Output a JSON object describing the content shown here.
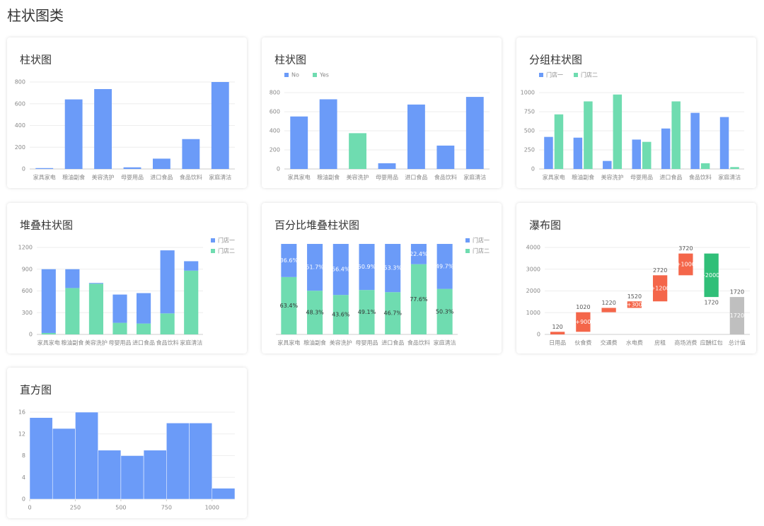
{
  "header": {
    "title": "柱状图类"
  },
  "chart_data": [
    {
      "type": "bar",
      "title": "柱状图",
      "categories": [
        "家具家电",
        "粮油副食",
        "美容洗护",
        "母婴用品",
        "进口食品",
        "食品饮料",
        "家庭清洁"
      ],
      "values": [
        8,
        640,
        735,
        15,
        95,
        275,
        800
      ],
      "color": "#6b9bf8",
      "ylim": [
        0,
        800
      ],
      "yticks": [
        0,
        200,
        400,
        600,
        800
      ],
      "grid": true
    },
    {
      "type": "bar",
      "title": "柱状图",
      "legend": "top-left",
      "categories": [
        "家具家电",
        "粮油副食",
        "美容洗护",
        "母婴用品",
        "进口食品",
        "食品饮料",
        "家庭清洁"
      ],
      "series": [
        {
          "name": "No",
          "color": "#6b9bf8",
          "values": [
            550,
            730,
            null,
            60,
            675,
            245,
            755
          ]
        },
        {
          "name": "Yes",
          "color": "#6fdcb0",
          "values": [
            null,
            null,
            375,
            null,
            null,
            null,
            null
          ]
        }
      ],
      "ylim": [
        0,
        800
      ],
      "yticks": [
        0,
        200,
        400,
        600,
        800
      ],
      "grid": true
    },
    {
      "type": "grouped_bar",
      "title": "分组柱状图",
      "legend": "top-left",
      "categories": [
        "家具家电",
        "粮油副食",
        "美容洗护",
        "母婴用品",
        "进口食品",
        "食品饮料",
        "家庭清洁"
      ],
      "series": [
        {
          "name": "门店一",
          "color": "#6b9bf8",
          "values": [
            420,
            410,
            105,
            385,
            530,
            735,
            680
          ]
        },
        {
          "name": "门店二",
          "color": "#6fdcb0",
          "values": [
            715,
            885,
            975,
            355,
            885,
            75,
            25
          ]
        }
      ],
      "ylim": [
        0,
        1000
      ],
      "yticks": [
        0,
        250,
        500,
        750,
        1000
      ],
      "grid": true
    },
    {
      "type": "stacked_bar",
      "title": "堆叠柱状图",
      "legend": "right",
      "categories": [
        "家具家电",
        "粮油副食",
        "美容洗护",
        "母婴用品",
        "进口食品",
        "食品饮料",
        "家庭清洁"
      ],
      "series": [
        {
          "name": "门店一",
          "color": "#6b9bf8",
          "values": [
            880,
            260,
            10,
            390,
            420,
            870,
            130
          ]
        },
        {
          "name": "门店二",
          "color": "#6fdcb0",
          "values": [
            20,
            640,
            700,
            160,
            150,
            290,
            880
          ]
        }
      ],
      "ylim": [
        0,
        1200
      ],
      "yticks": [
        0,
        300,
        600,
        900,
        1200
      ],
      "grid": true
    },
    {
      "type": "percent_stacked_bar",
      "title": "百分比堆叠柱状图",
      "legend": "right",
      "categories": [
        "家具家电",
        "粮油副食",
        "美容洗护",
        "母婴用品",
        "进口食品",
        "食品饮料",
        "家庭清洁"
      ],
      "series": [
        {
          "name": "门店一",
          "color": "#6b9bf8",
          "values": [
            36.6,
            51.7,
            56.4,
            50.9,
            53.3,
            22.4,
            49.7
          ],
          "value_labels": [
            "36.6%",
            "51.7%",
            "56.4%",
            "50.9%",
            "53.3%",
            "22.4%",
            "49.7%"
          ]
        },
        {
          "name": "门店二",
          "color": "#6fdcb0",
          "values": [
            63.4,
            48.3,
            43.6,
            49.1,
            46.7,
            77.6,
            50.3
          ],
          "value_labels": [
            "63.4%",
            "48.3%",
            "43.6%",
            "49.1%",
            "46.7%",
            "77.6%",
            "50.3%"
          ]
        }
      ]
    },
    {
      "type": "waterfall",
      "title": "瀑布图",
      "categories": [
        "日用品",
        "伙食费",
        "交通费",
        "水电费",
        "房租",
        "商场消费",
        "应酬红包",
        "总计值"
      ],
      "values": [
        120,
        900,
        200,
        300,
        1200,
        1000,
        -2000,
        1720
      ],
      "value_labels": [
        null,
        "+900",
        null,
        "+300",
        "+1200",
        "+1000",
        "-2000",
        "1720"
      ],
      "cumulative_labels": [
        120,
        1020,
        1220,
        1520,
        2720,
        3720,
        1720,
        1720
      ],
      "colors": {
        "increase": "#f4664a",
        "decrease": "#30bf78",
        "total": "#bfbfbf"
      },
      "ylim": [
        0,
        4000
      ],
      "yticks": [
        0,
        1000,
        2000,
        3000,
        4000
      ],
      "grid": true
    },
    {
      "type": "histogram",
      "title": "直方图",
      "bins": [
        0,
        125,
        250,
        375,
        500,
        625,
        750,
        875,
        1000,
        1125
      ],
      "values": [
        15,
        13,
        16,
        9,
        8,
        9,
        14,
        14,
        2
      ],
      "color": "#6b9bf8",
      "xlim": [
        0,
        1125
      ],
      "xticks": [
        0,
        250,
        500,
        750,
        1000
      ],
      "ylim": [
        0,
        16
      ],
      "yticks": [
        0,
        4,
        8,
        12,
        16
      ],
      "grid": true
    }
  ]
}
